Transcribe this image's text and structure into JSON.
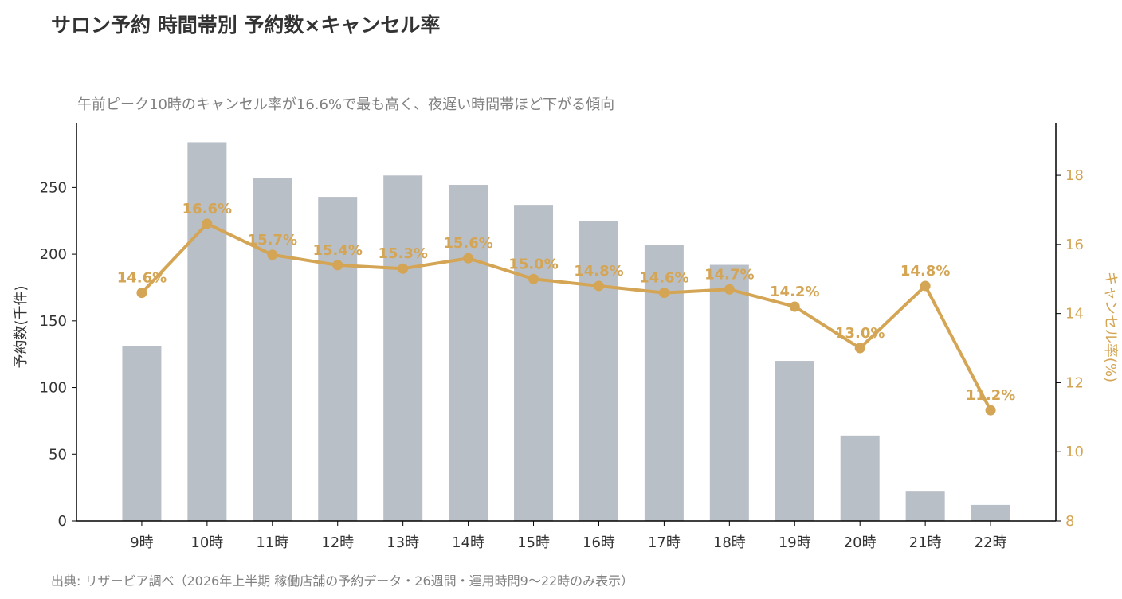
{
  "title": "サロン予約 時間帯別 予約数×キャンセル率",
  "subtitle": "午前ピーク10時のキャンセル率が16.6%で最も高く、夜遅い時間帯ほど下がる傾向",
  "source": "出典: リザービア調べ（2026年上半期 稼働店舗の予約データ・26週間・運用時間9〜22時のみ表示）",
  "chart_data": {
    "type": "bar+line",
    "categories": [
      "9時",
      "10時",
      "11時",
      "12時",
      "13時",
      "14時",
      "15時",
      "16時",
      "17時",
      "18時",
      "19時",
      "20時",
      "21時",
      "22時"
    ],
    "series": [
      {
        "axis": "left",
        "type": "bar",
        "values": [
          131,
          284,
          257,
          243,
          259,
          252,
          237,
          225,
          207,
          192,
          120,
          64,
          22,
          12
        ],
        "color": "#B9BFC7"
      },
      {
        "axis": "right",
        "type": "line",
        "values": [
          14.6,
          16.6,
          15.7,
          15.4,
          15.3,
          15.6,
          15.0,
          14.8,
          14.6,
          14.7,
          14.2,
          13.0,
          14.8,
          11.2
        ],
        "labels": [
          "14.6%",
          "16.6%",
          "15.7%",
          "15.4%",
          "15.3%",
          "15.6%",
          "15.0%",
          "14.8%",
          "14.6%",
          "14.7%",
          "14.2%",
          "13.0%",
          "14.8%",
          "11.2%"
        ],
        "color": "#D4A554"
      }
    ],
    "y_left": {
      "label": "予約数(千件)",
      "range": [
        0,
        298
      ],
      "ticks": [
        0,
        50,
        100,
        150,
        200,
        250
      ]
    },
    "y_right": {
      "label": "キャンセル率(%)",
      "range": [
        8,
        19.5
      ],
      "ticks": [
        8,
        10,
        12,
        14,
        16,
        18
      ]
    },
    "grid": false
  }
}
